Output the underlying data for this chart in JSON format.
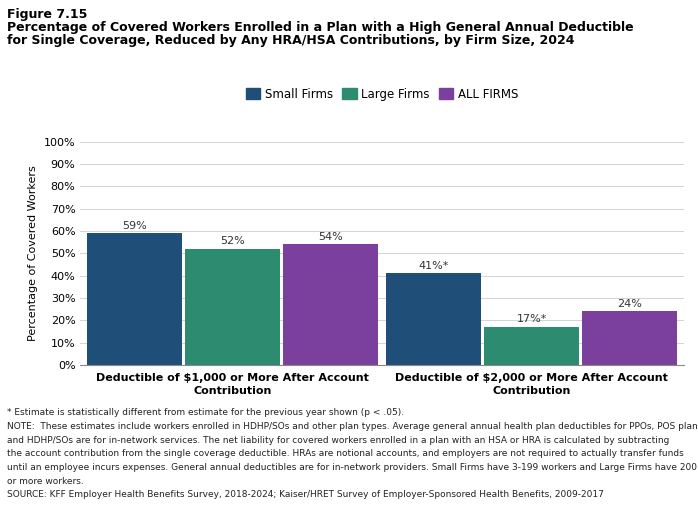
{
  "figure_label": "Figure 7.15",
  "title_line1": "Percentage of Covered Workers Enrolled in a Plan with a High General Annual Deductible",
  "title_line2": "for Single Coverage, Reduced by Any HRA/HSA Contributions, by Firm Size, 2024",
  "ylabel": "Percentage of Covered Workers",
  "groups": [
    "Deductible of $1,000 or More After Account\nContribution",
    "Deductible of $2,000 or More After Account\nContribution"
  ],
  "series": [
    "Small Firms",
    "Large Firms",
    "ALL FIRMS"
  ],
  "values": [
    [
      59,
      52,
      54
    ],
    [
      41,
      17,
      24
    ]
  ],
  "labels": [
    [
      "59%",
      "52%",
      "54%"
    ],
    [
      "41%*",
      "17%*",
      "24%"
    ]
  ],
  "colors": [
    "#1f4e79",
    "#2d8b70",
    "#7b3f9e"
  ],
  "bar_width": 0.18,
  "ylim": [
    0,
    100
  ],
  "yticks": [
    0,
    10,
    20,
    30,
    40,
    50,
    60,
    70,
    80,
    90,
    100
  ],
  "ytick_labels": [
    "0%",
    "10%",
    "20%",
    "30%",
    "40%",
    "50%",
    "60%",
    "70%",
    "80%",
    "90%",
    "100%"
  ],
  "footnote1": "* Estimate is statistically different from estimate for the previous year shown (p < .05).",
  "footnote2": "NOTE:  These estimates include workers enrolled in HDHP/SOs and other plan types. Average general annual health plan deductibles for PPOs, POS plans,",
  "footnote3": "and HDHP/SOs are for in-network services. The net liability for covered workers enrolled in a plan with an HSA or HRA is calculated by subtracting",
  "footnote4": "the account contribution from the single coverage deductible. HRAs are notional accounts, and employers are not required to actually transfer funds",
  "footnote5": "until an employee incurs expenses. General annual deductibles are for in-network providers. Small Firms have 3-199 workers and Large Firms have 200",
  "footnote6": "or more workers.",
  "footnote7": "SOURCE: KFF Employer Health Benefits Survey, 2018-2024; Kaiser/HRET Survey of Employer-Sponsored Health Benefits, 2009-2017",
  "bg_color": "#ffffff"
}
